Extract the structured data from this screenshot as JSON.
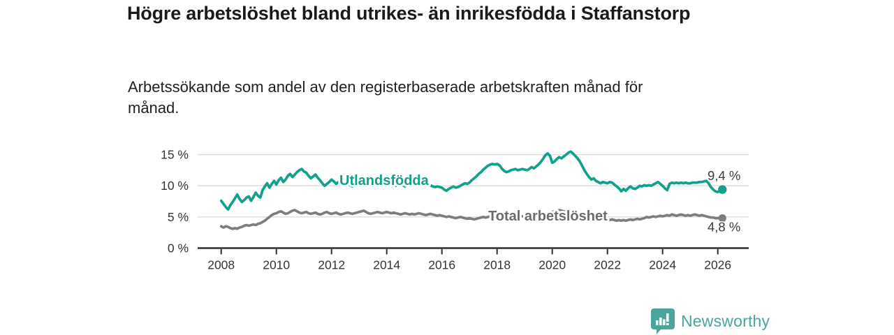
{
  "header": {
    "title": "Högre arbetslöshet bland utrikes- än inrikesfödda i Staffanstorp",
    "subtitle": "Arbetssökande som andel av den registerbaserade arbetskraften månad för månad."
  },
  "branding": {
    "logo_text": "Newsworthy",
    "logo_icon": "bar-chart-speech-bubble-icon",
    "brand_color": "#4BA59C"
  },
  "colors": {
    "accent_teal": "#10A08C",
    "series_gray": "#7D7D81",
    "series_gray_label": "#6B6B70",
    "title_text": "#1A1A1A",
    "axis_text": "#333333",
    "value_label_text": "#3B3B3B",
    "gridline": "#D9D9D9",
    "axis_line": "#2E2E2E",
    "background": "#FFFFFF"
  },
  "chart_data": {
    "type": "line",
    "title": "Högre arbetslöshet bland utrikes- än inrikesfödda i Staffanstorp",
    "subtitle": "Arbetssökande som andel av den registerbaserade arbetskraften månad för månad.",
    "xlabel": "",
    "ylabel": "",
    "grid": "horizontal",
    "legend_position": "inline-labels",
    "x_start_year": 2008,
    "points_per_month": 1,
    "x_tick_labels": [
      "2008",
      "2010",
      "2012",
      "2014",
      "2016",
      "2018",
      "2020",
      "2022",
      "2024",
      "2026"
    ],
    "x_tick_years": [
      2008,
      2010,
      2012,
      2014,
      2016,
      2018,
      2020,
      2022,
      2024,
      2026
    ],
    "y_tick_labels": [
      "0 %",
      "5 %",
      "10 %",
      "15 %"
    ],
    "y_tick_values": [
      0,
      5,
      10,
      15
    ],
    "ylim": [
      0,
      16.5
    ],
    "xlim_years": [
      2007.15,
      2027.1
    ],
    "series": [
      {
        "name": "Utlandsfödda",
        "color": "#10A08C",
        "end_value": 9.4,
        "end_label": "9,4 %",
        "values": [
          7.6,
          7.1,
          6.6,
          6.2,
          6.9,
          7.4,
          8.0,
          8.6,
          7.9,
          7.4,
          7.7,
          8.1,
          8.3,
          7.6,
          8.2,
          8.9,
          8.4,
          8.1,
          9.3,
          9.9,
          10.4,
          9.7,
          10.3,
          10.8,
          10.2,
          10.9,
          11.3,
          10.6,
          11.0,
          11.6,
          11.9,
          11.4,
          11.8,
          12.2,
          12.5,
          12.7,
          12.3,
          12.1,
          11.6,
          11.2,
          11.5,
          11.8,
          11.3,
          10.9,
          10.4,
          10.0,
          10.3,
          10.6,
          11.0,
          10.7,
          10.3,
          10.6,
          10.9,
          10.5,
          10.2,
          10.4,
          10.1,
          9.9,
          10.2,
          10.0,
          10.3,
          10.6,
          10.8,
          10.4,
          10.1,
          10.3,
          10.5,
          10.2,
          10.0,
          10.2,
          10.4,
          10.3,
          10.1,
          10.4,
          10.6,
          10.3,
          10.0,
          10.2,
          10.4,
          10.1,
          9.9,
          10.1,
          10.3,
          10.2,
          10.4,
          10.6,
          10.4,
          10.2,
          10.3,
          10.1,
          10.0,
          10.1,
          9.9,
          9.8,
          9.9,
          9.8,
          9.7,
          9.4,
          9.2,
          9.5,
          9.7,
          9.9,
          9.7,
          9.8,
          10.0,
          10.2,
          10.4,
          10.3,
          10.5,
          10.9,
          11.2,
          11.5,
          11.9,
          12.2,
          12.6,
          12.9,
          13.2,
          13.4,
          13.5,
          13.4,
          13.5,
          13.3,
          12.8,
          12.4,
          12.2,
          12.3,
          12.5,
          12.6,
          12.7,
          12.5,
          12.6,
          12.7,
          12.6,
          12.5,
          12.7,
          13.0,
          12.8,
          13.1,
          13.4,
          13.8,
          14.3,
          14.9,
          15.2,
          14.8,
          13.7,
          13.9,
          14.3,
          14.6,
          14.4,
          14.7,
          15.0,
          15.3,
          15.5,
          15.2,
          14.8,
          14.4,
          13.9,
          13.2,
          12.5,
          11.9,
          11.4,
          11.0,
          11.2,
          10.8,
          10.6,
          10.4,
          10.6,
          10.5,
          10.4,
          10.6,
          10.5,
          10.2,
          9.9,
          9.6,
          9.1,
          9.5,
          9.2,
          9.6,
          9.9,
          9.6,
          9.5,
          9.7,
          10.0,
          9.9,
          10.1,
          10.0,
          10.1,
          10.0,
          10.2,
          10.4,
          10.6,
          10.3,
          10.0,
          9.6,
          9.3,
          10.3,
          10.5,
          10.4,
          10.5,
          10.4,
          10.5,
          10.4,
          10.5,
          10.4,
          10.4,
          10.5,
          10.5,
          10.5,
          10.6,
          10.6,
          10.7,
          10.8,
          10.4,
          9.8,
          9.4,
          9.1,
          9.0,
          9.2,
          9.4
        ]
      },
      {
        "name": "Total arbetslöshet",
        "color": "#7D7D81",
        "end_value": 4.8,
        "end_label": "4,8 %",
        "values": [
          3.5,
          3.3,
          3.5,
          3.4,
          3.2,
          3.1,
          3.2,
          3.1,
          3.3,
          3.4,
          3.6,
          3.7,
          3.6,
          3.7,
          3.8,
          3.7,
          3.9,
          4.0,
          4.2,
          4.4,
          4.7,
          5.0,
          5.3,
          5.5,
          5.6,
          5.8,
          5.9,
          5.7,
          5.5,
          5.6,
          5.8,
          6.0,
          6.1,
          5.9,
          5.7,
          5.6,
          5.7,
          5.8,
          5.6,
          5.5,
          5.6,
          5.7,
          5.5,
          5.4,
          5.5,
          5.7,
          5.8,
          5.6,
          5.5,
          5.6,
          5.7,
          5.5,
          5.4,
          5.5,
          5.6,
          5.7,
          5.6,
          5.5,
          5.6,
          5.7,
          5.8,
          5.9,
          6.0,
          5.8,
          5.6,
          5.5,
          5.6,
          5.7,
          5.8,
          5.7,
          5.6,
          5.7,
          5.8,
          5.7,
          5.6,
          5.7,
          5.6,
          5.5,
          5.4,
          5.5,
          5.6,
          5.5,
          5.4,
          5.5,
          5.4,
          5.5,
          5.6,
          5.5,
          5.4,
          5.3,
          5.4,
          5.5,
          5.4,
          5.3,
          5.2,
          5.3,
          5.2,
          5.1,
          5.0,
          5.1,
          5.0,
          4.9,
          4.8,
          4.9,
          5.0,
          4.9,
          4.8,
          4.7,
          4.8,
          4.7,
          4.6,
          4.7,
          4.8,
          4.9,
          5.0,
          4.9,
          5.0,
          5.1,
          5.0,
          5.1,
          5.0,
          5.1,
          5.0,
          4.9,
          5.0,
          5.1,
          5.2,
          5.1,
          5.0,
          5.1,
          5.2,
          5.1,
          5.0,
          5.1,
          5.2,
          5.1,
          5.2,
          5.3,
          5.4,
          5.3,
          5.4,
          5.5,
          5.6,
          5.7,
          5.8,
          5.9,
          6.0,
          6.1,
          6.0,
          5.9,
          5.8,
          5.9,
          5.8,
          5.7,
          5.6,
          5.5,
          5.4,
          5.3,
          5.2,
          5.1,
          5.0,
          4.9,
          4.8,
          4.9,
          4.8,
          4.7,
          4.6,
          4.7,
          4.6,
          4.5,
          4.6,
          4.5,
          4.4,
          4.5,
          4.4,
          4.5,
          4.4,
          4.5,
          4.6,
          4.5,
          4.6,
          4.7,
          4.6,
          4.7,
          4.8,
          5.0,
          4.9,
          5.0,
          5.1,
          5.0,
          5.1,
          5.2,
          5.1,
          5.2,
          5.3,
          5.2,
          5.4,
          5.3,
          5.2,
          5.3,
          5.4,
          5.3,
          5.2,
          5.3,
          5.2,
          5.3,
          5.4,
          5.3,
          5.2,
          5.3,
          5.2,
          5.1,
          5.0,
          4.9,
          4.9,
          4.8,
          4.8,
          4.9,
          4.8
        ]
      }
    ]
  }
}
